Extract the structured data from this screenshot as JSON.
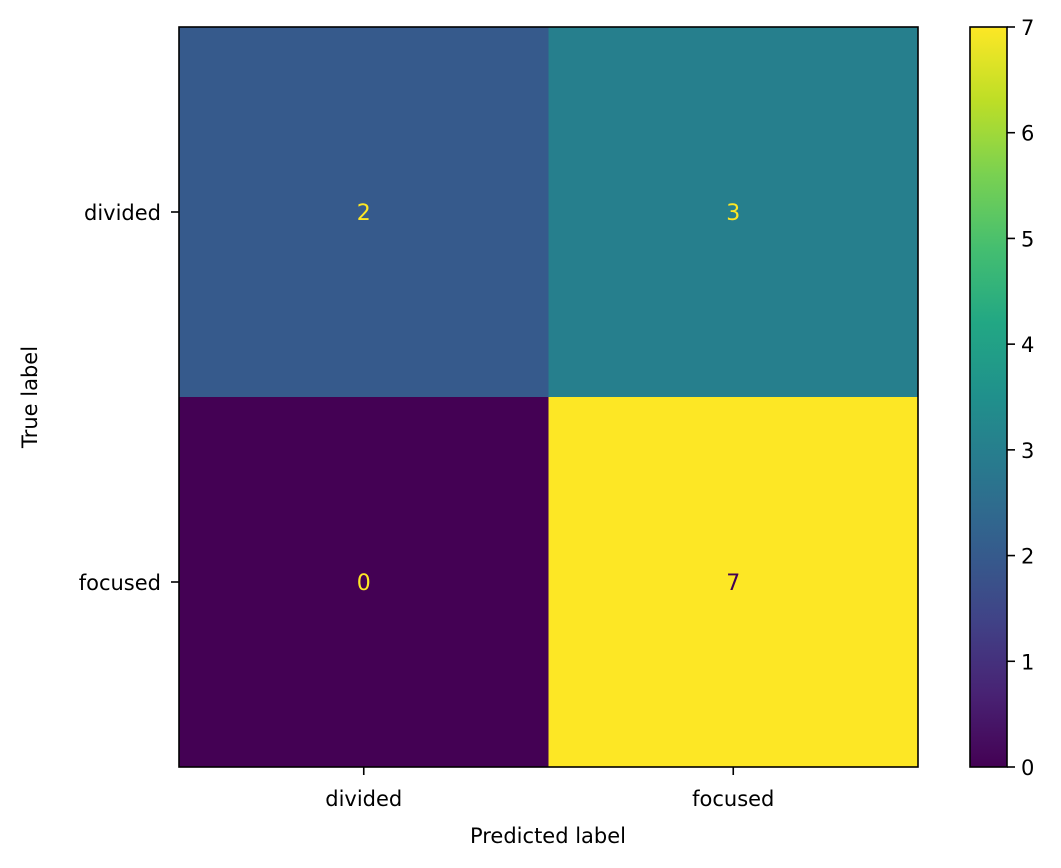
{
  "chart_data": {
    "type": "heatmap",
    "title": "",
    "xlabel": "Predicted label",
    "ylabel": "True label",
    "x_categories": [
      "divided",
      "focused"
    ],
    "y_categories": [
      "divided",
      "focused"
    ],
    "values": [
      [
        2,
        3
      ],
      [
        0,
        7
      ]
    ],
    "colormap": "viridis",
    "colorbar": {
      "min": 0,
      "max": 7,
      "ticks": [
        "0",
        "1",
        "2",
        "3",
        "4",
        "5",
        "6",
        "7"
      ]
    },
    "annotation_colors": {
      "on_dark": "#fde725",
      "on_light": "#440154"
    },
    "grid": false
  }
}
